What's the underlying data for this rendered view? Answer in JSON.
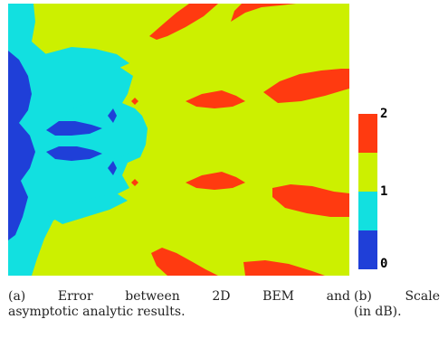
{
  "figure": {
    "colors": {
      "band_0_1_dark": "#1f3fd8",
      "band_0_1_light": "#12e0e0",
      "band_1_2": "#ccf000",
      "band_2": "#ff3a10"
    },
    "caption_a": {
      "line1_words": [
        "(a)",
        "Error",
        "between",
        "2D",
        "BEM",
        "and"
      ],
      "line2": "asymptotic analytic results."
    },
    "caption_b": {
      "line1_words": [
        "(b)",
        "Scale"
      ],
      "line2": "(in dB)."
    }
  },
  "chart_data": {
    "type": "heatmap",
    "title": "",
    "xlabel": "",
    "ylabel": "",
    "colorbar": {
      "ticks": [
        "0",
        "1",
        "2"
      ],
      "unit": "dB",
      "bands": [
        {
          "range": [
            0,
            0.5
          ],
          "color": "#1f3fd8"
        },
        {
          "range": [
            0.5,
            1
          ],
          "color": "#12e0e0"
        },
        {
          "range": [
            1,
            1.5
          ],
          "color": "#ccf000"
        },
        {
          "range": [
            1.5,
            2
          ],
          "color": "#ff3a10"
        }
      ]
    }
  }
}
